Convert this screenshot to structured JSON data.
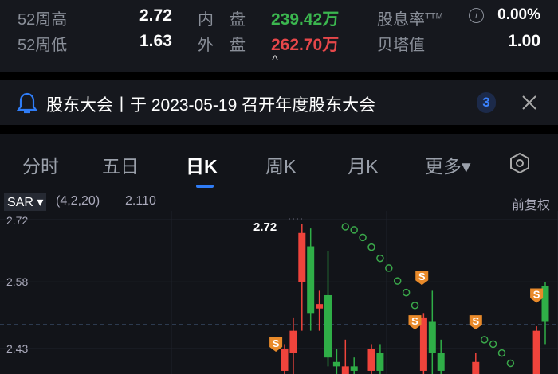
{
  "stats": {
    "rows": [
      {
        "label": "52周高",
        "value": "2.72",
        "mid_label": "内　盘",
        "mid_value": "239.42万",
        "right_label": "股息率",
        "right_sup": "TTM",
        "right_value": "0.00%"
      },
      {
        "label": "52周低",
        "value": "1.63",
        "mid_label": "外　盘",
        "mid_value": "262.70万",
        "right_label": "贝塔值",
        "right_value": "1.00"
      }
    ],
    "collapse_icon": "^"
  },
  "notice": {
    "text": "股东大会丨于 2023-05-19 召开年度股东大会",
    "count": "3"
  },
  "tabs": [
    {
      "label": "分时"
    },
    {
      "label": "五日"
    },
    {
      "label": "日K",
      "active": true
    },
    {
      "label": "周K"
    },
    {
      "label": "月K"
    },
    {
      "label": "更多▾"
    }
  ],
  "chart_header": {
    "indicator": "SAR ▾",
    "params": "(4,2,20)",
    "value": "2.110",
    "adjust": "前复权"
  },
  "colors": {
    "up": "#f0443c",
    "down": "#2fae47",
    "sar": "#3aa84a",
    "signal": "#e98a2a",
    "accent": "#2f7cf6",
    "green_text": "#3bb64f",
    "red_text": "#e6474a"
  },
  "chart_data": {
    "type": "candlestick",
    "y_ticks": [
      "2.72",
      "2.58",
      "2.43"
    ],
    "ylim": [
      2.373,
      2.725
    ],
    "high_label": "2.72",
    "current_price_line": 2.484,
    "candles": [
      {
        "i": 0,
        "o": 2.38,
        "c": 2.43,
        "h": 2.44,
        "l": 2.37
      },
      {
        "i": 1,
        "o": 2.42,
        "c": 2.47,
        "h": 2.5,
        "l": 2.37
      },
      {
        "i": 2,
        "o": 2.58,
        "c": 2.69,
        "h": 2.71,
        "l": 2.47
      },
      {
        "i": 3,
        "o": 2.66,
        "c": 2.51,
        "h": 2.7,
        "l": 2.47
      },
      {
        "i": 4,
        "o": 2.52,
        "c": 2.53,
        "h": 2.56,
        "l": 2.47
      },
      {
        "i": 5,
        "o": 2.55,
        "c": 2.41,
        "h": 2.65,
        "l": 2.39
      },
      {
        "i": 6,
        "o": 2.4,
        "c": 2.39,
        "h": 2.43,
        "l": 2.37
      },
      {
        "i": 7,
        "o": 2.37,
        "c": 2.39,
        "h": 2.45,
        "l": 2.37
      },
      {
        "i": 8,
        "o": 2.39,
        "c": 2.38,
        "h": 2.41,
        "l": 2.37
      },
      {
        "i": 10,
        "o": 2.38,
        "c": 2.43,
        "h": 2.44,
        "l": 2.37
      },
      {
        "i": 11,
        "o": 2.42,
        "c": 2.38,
        "h": 2.44,
        "l": 2.37
      },
      {
        "i": 16,
        "o": 2.38,
        "c": 2.5,
        "h": 2.51,
        "l": 2.37
      },
      {
        "i": 17,
        "o": 2.49,
        "c": 2.42,
        "h": 2.56,
        "l": 2.37
      },
      {
        "i": 18,
        "o": 2.42,
        "c": 2.38,
        "h": 2.45,
        "l": 2.37
      },
      {
        "i": 22,
        "o": 2.37,
        "c": 2.4,
        "h": 2.42,
        "l": 2.37
      },
      {
        "i": 29,
        "o": 2.37,
        "c": 2.47,
        "h": 2.48,
        "l": 2.37
      },
      {
        "i": 30,
        "o": 2.57,
        "c": 2.49,
        "h": 2.58,
        "l": 2.44
      }
    ],
    "sar": [
      {
        "i": 7,
        "v": 2.704
      },
      {
        "i": 8,
        "v": 2.697
      },
      {
        "i": 9,
        "v": 2.68
      },
      {
        "i": 10,
        "v": 2.658
      },
      {
        "i": 11,
        "v": 2.633
      },
      {
        "i": 12,
        "v": 2.611
      },
      {
        "i": 13,
        "v": 2.582
      },
      {
        "i": 14,
        "v": 2.556
      },
      {
        "i": 15,
        "v": 2.527
      },
      {
        "i": 23,
        "v": 2.45
      },
      {
        "i": 24,
        "v": 2.44
      },
      {
        "i": 25,
        "v": 2.42
      },
      {
        "i": 26,
        "v": 2.397
      }
    ],
    "signals": [
      {
        "i": -1,
        "v": 2.43,
        "label": "S"
      },
      {
        "i": 15.8,
        "v": 2.58,
        "label": "S"
      },
      {
        "i": 15,
        "v": 2.48,
        "label": "S"
      },
      {
        "i": 22,
        "v": 2.48,
        "label": "S"
      },
      {
        "i": 29,
        "v": 2.54,
        "label": "S"
      }
    ]
  }
}
